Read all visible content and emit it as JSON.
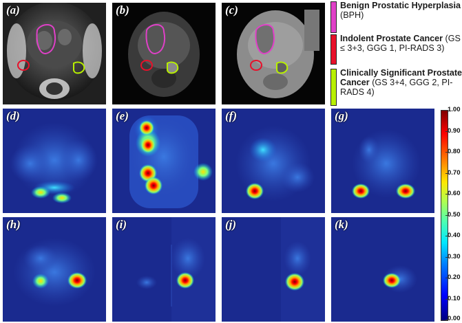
{
  "panel_labels": {
    "a": "(a)",
    "b": "(b)",
    "c": "(c)",
    "d": "(d)",
    "e": "(e)",
    "f": "(f)",
    "g": "(g)",
    "h": "(h)",
    "i": "(i)",
    "j": "(j)",
    "k": "(k)"
  },
  "legend": [
    {
      "title": "Benign Prostatic Hyperplasia",
      "sub": " (BPH)",
      "color": "#e040c8"
    },
    {
      "title": "Indolent Prostate Cancer",
      "sub": " (GS ≤ 3+3, GGG 1, PI-RADS 3)",
      "color": "#e8102a"
    },
    {
      "title": "Clinically Significant Prostate Cancer",
      "sub": " (GS 3+4, GGG 2, PI-RADS 4)",
      "color": "#b8f000"
    }
  ],
  "colorbar": {
    "ticks": [
      "1.00",
      "0.90",
      "0.80",
      "0.70",
      "0.60",
      "0.50",
      "0.40",
      "0.30",
      "0.20",
      "0.10",
      "0.00"
    ]
  },
  "colors": {
    "heatmap_background": "#1a2a8f",
    "bph_roi": "#e040c8",
    "indolent_roi": "#e8102a",
    "significant_roi": "#b8f000"
  }
}
